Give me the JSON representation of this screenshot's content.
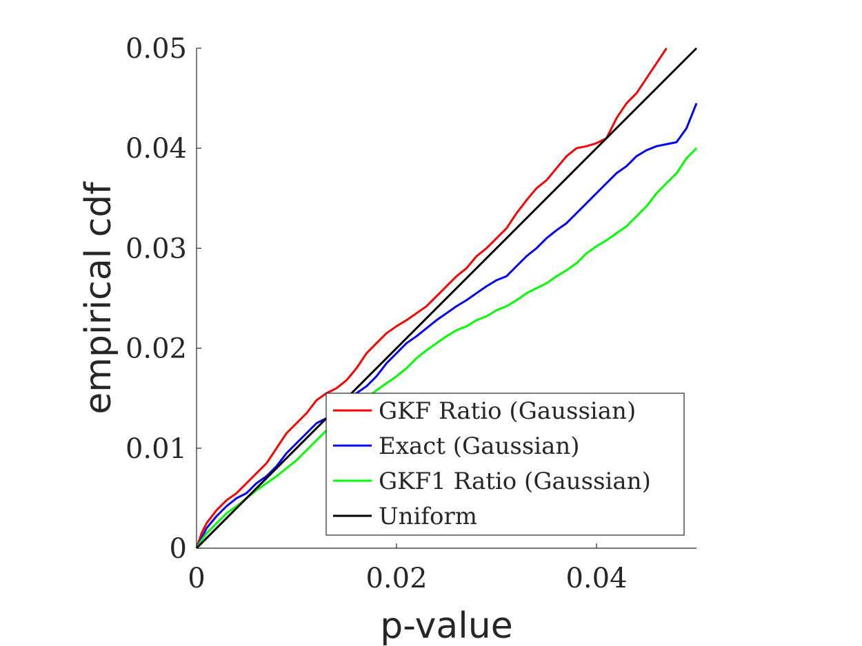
{
  "chart_data": {
    "type": "line",
    "xlabel": "p-value",
    "ylabel": "empirical cdf",
    "xlim": [
      0,
      0.05
    ],
    "ylim": [
      0,
      0.05
    ],
    "xticks": [
      0,
      0.02,
      0.04
    ],
    "xtick_labels": [
      "0",
      "0.02",
      "0.04"
    ],
    "yticks": [
      0,
      0.01,
      0.02,
      0.03,
      0.04,
      0.05
    ],
    "ytick_labels": [
      "0",
      "0.01",
      "0.02",
      "0.03",
      "0.04",
      "0.05"
    ],
    "grid": false,
    "legend_position": "bottom-right",
    "series": [
      {
        "name": "GKF Ratio (Gaussian)",
        "color": "#ff0000",
        "x": [
          0,
          0.0005,
          0.001,
          0.002,
          0.003,
          0.004,
          0.005,
          0.006,
          0.007,
          0.008,
          0.009,
          0.01,
          0.011,
          0.012,
          0.013,
          0.014,
          0.015,
          0.016,
          0.017,
          0.018,
          0.019,
          0.02,
          0.021,
          0.022,
          0.023,
          0.024,
          0.025,
          0.026,
          0.027,
          0.028,
          0.029,
          0.03,
          0.031,
          0.032,
          0.033,
          0.034,
          0.035,
          0.036,
          0.037,
          0.038,
          0.039,
          0.04,
          0.041,
          0.042,
          0.043,
          0.044,
          0.045,
          0.046,
          0.047
        ],
        "y": [
          0,
          0.0015,
          0.0025,
          0.0038,
          0.0048,
          0.0055,
          0.0065,
          0.0075,
          0.0085,
          0.01,
          0.0115,
          0.0125,
          0.0135,
          0.0148,
          0.0155,
          0.016,
          0.0168,
          0.018,
          0.0195,
          0.0205,
          0.0215,
          0.0222,
          0.0228,
          0.0235,
          0.0242,
          0.0252,
          0.0262,
          0.0272,
          0.028,
          0.0292,
          0.03,
          0.031,
          0.032,
          0.0335,
          0.0348,
          0.036,
          0.0368,
          0.038,
          0.0392,
          0.04,
          0.0402,
          0.0405,
          0.041,
          0.043,
          0.0445,
          0.0455,
          0.047,
          0.0485,
          0.05
        ]
      },
      {
        "name": "Exact (Gaussian)",
        "color": "#0000ff",
        "x": [
          0,
          0.0005,
          0.001,
          0.002,
          0.003,
          0.004,
          0.005,
          0.006,
          0.007,
          0.008,
          0.009,
          0.01,
          0.011,
          0.012,
          0.013,
          0.014,
          0.015,
          0.016,
          0.017,
          0.018,
          0.019,
          0.02,
          0.021,
          0.022,
          0.023,
          0.024,
          0.025,
          0.026,
          0.027,
          0.028,
          0.029,
          0.03,
          0.031,
          0.032,
          0.033,
          0.034,
          0.035,
          0.036,
          0.037,
          0.038,
          0.039,
          0.04,
          0.041,
          0.042,
          0.043,
          0.044,
          0.045,
          0.046,
          0.047,
          0.048,
          0.049,
          0.05
        ],
        "y": [
          0,
          0.001,
          0.002,
          0.0032,
          0.0042,
          0.005,
          0.0055,
          0.0065,
          0.0072,
          0.0082,
          0.0095,
          0.0105,
          0.0115,
          0.0125,
          0.013,
          0.014,
          0.015,
          0.0155,
          0.0162,
          0.0172,
          0.0185,
          0.0195,
          0.0205,
          0.0212,
          0.022,
          0.0228,
          0.0235,
          0.0242,
          0.0248,
          0.0255,
          0.0262,
          0.0268,
          0.0272,
          0.0282,
          0.0292,
          0.03,
          0.031,
          0.0318,
          0.0325,
          0.0335,
          0.0345,
          0.0355,
          0.0365,
          0.0375,
          0.0382,
          0.0392,
          0.0398,
          0.0402,
          0.0404,
          0.0406,
          0.042,
          0.0445
        ]
      },
      {
        "name": "GKF1 Ratio (Gaussian)",
        "color": "#00ff00",
        "x": [
          0,
          0.0005,
          0.001,
          0.002,
          0.003,
          0.004,
          0.005,
          0.006,
          0.007,
          0.008,
          0.009,
          0.01,
          0.011,
          0.012,
          0.013,
          0.014,
          0.015,
          0.016,
          0.017,
          0.018,
          0.019,
          0.02,
          0.021,
          0.022,
          0.023,
          0.024,
          0.025,
          0.026,
          0.027,
          0.028,
          0.029,
          0.03,
          0.031,
          0.032,
          0.033,
          0.034,
          0.035,
          0.036,
          0.037,
          0.038,
          0.039,
          0.04,
          0.041,
          0.042,
          0.043,
          0.044,
          0.045,
          0.046,
          0.047,
          0.048,
          0.049,
          0.05
        ],
        "y": [
          0,
          0.0008,
          0.0015,
          0.0025,
          0.0035,
          0.0042,
          0.005,
          0.0058,
          0.0065,
          0.0072,
          0.008,
          0.0088,
          0.0098,
          0.0108,
          0.0118,
          0.0125,
          0.0135,
          0.0142,
          0.015,
          0.0158,
          0.0165,
          0.0172,
          0.018,
          0.019,
          0.0198,
          0.0205,
          0.0212,
          0.0218,
          0.0222,
          0.0228,
          0.0232,
          0.0238,
          0.0242,
          0.0248,
          0.0255,
          0.026,
          0.0265,
          0.0272,
          0.0278,
          0.0285,
          0.0295,
          0.0302,
          0.0308,
          0.0315,
          0.0322,
          0.0332,
          0.0342,
          0.0355,
          0.0365,
          0.0375,
          0.039,
          0.04
        ]
      },
      {
        "name": "Uniform",
        "color": "#000000",
        "x": [
          0,
          0.05
        ],
        "y": [
          0,
          0.05
        ]
      }
    ]
  }
}
